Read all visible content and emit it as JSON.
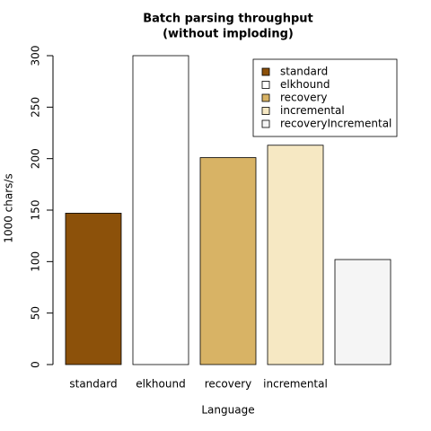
{
  "chart_data": {
    "type": "bar",
    "title": [
      "Batch parsing throughput",
      "(without imploding)"
    ],
    "y_label": "1000 chars/s",
    "x_label": "Language",
    "categories": [
      "standard",
      "elkhound",
      "recovery",
      "incremental",
      null
    ],
    "values": [
      147,
      300,
      201,
      213,
      102
    ],
    "colors": [
      "#8c510a",
      "#ffffff",
      "#d8b365",
      "#f6e8c3",
      "#f5f5f5"
    ],
    "legend": [
      "standard",
      "elkhound",
      "recovery",
      "incremental",
      "recoveryIncremental"
    ],
    "legend_position": "top-right",
    "ylim": [
      0,
      300
    ],
    "yticks": [
      0,
      50,
      100,
      150,
      200,
      250,
      300
    ]
  }
}
